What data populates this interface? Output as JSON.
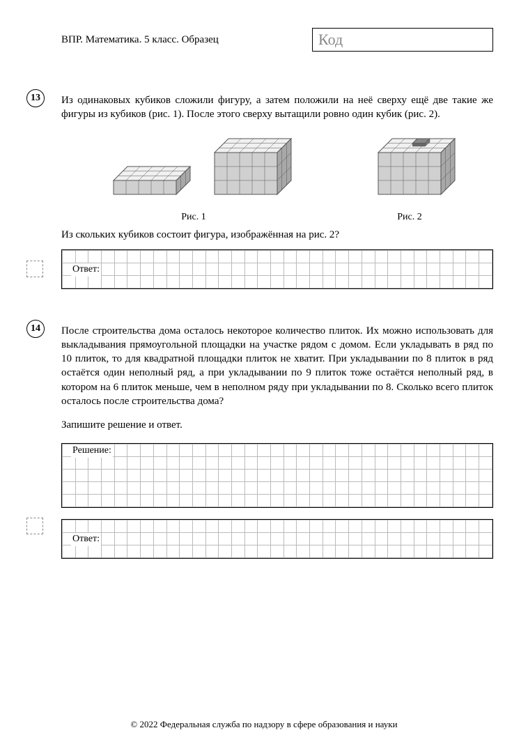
{
  "header": {
    "title": "ВПР. Математика. 5 класс. Образец",
    "code_label": "Код"
  },
  "tasks": [
    {
      "num": "13",
      "text_1": "Из одинаковых кубиков сложили фигуру, а затем положили на неё сверху ещё две такие же фигуры из кубиков (рис. 1). После этого сверху вытащили ровно один кубик (рис. 2).",
      "fig1_caption": "Рис. 1",
      "fig2_caption": "Рис. 2",
      "text_2": "Из скольких кубиков состоит фигура, изображённая на рис. 2?",
      "answer_label": "Ответ:"
    },
    {
      "num": "14",
      "text_1": "После строительства дома осталось некоторое количество плиток. Их можно использовать для выкладывания прямоугольной площадки на участке рядом с домом. Если укладывать в ряд по 10 плиток, то для квадратной площадки плиток не хватит. При укладывании по 8 плиток в ряд остаётся один неполный ряд, а при укладывании по 9 плиток тоже остаётся неполный ряд, в котором на 6 плиток меньше, чем в неполном ряду при укладывании по 8. Сколько всего плиток осталось после строительства дома?",
      "text_2": "Запишите решение и ответ.",
      "solution_label": "Решение:",
      "answer_label": "Ответ:"
    }
  ],
  "footer": "© 2022 Федеральная служба по надзору в сфере образования и науки",
  "style": {
    "grid_cols": 33,
    "answer_rows_t13": 3,
    "solution_rows_t14": 5,
    "answer_rows_t14": 3,
    "border_color": "#000000",
    "cell_border_color": "#bbbbbb",
    "code_text_color": "#888888",
    "cube_light": "#f0f0f0",
    "cube_med": "#d0d0d0",
    "cube_dark": "#a8a8a8",
    "stroke": "#555555"
  }
}
